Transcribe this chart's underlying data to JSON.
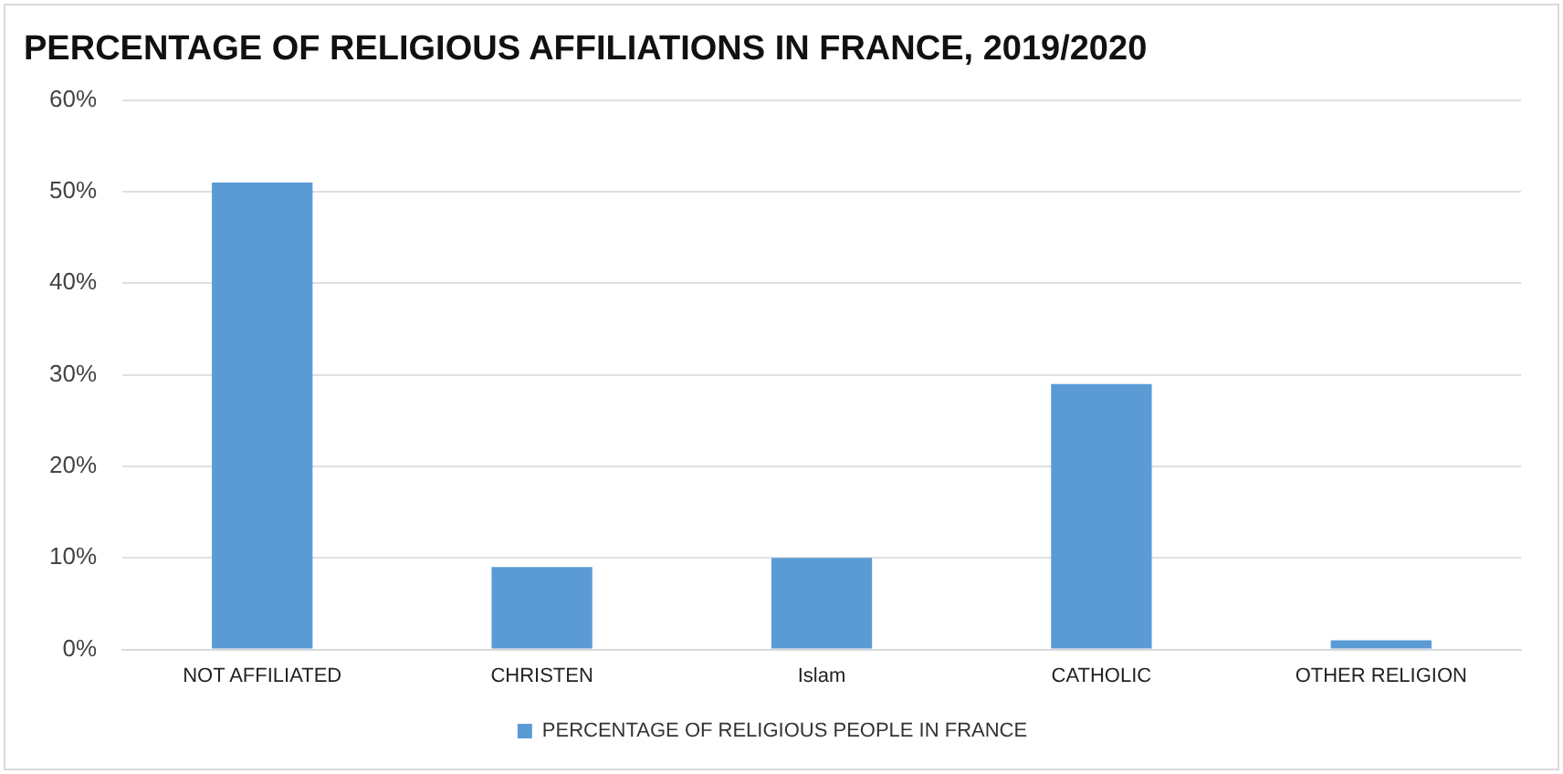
{
  "chart_data": {
    "type": "bar",
    "title": "PERCENTAGE OF RELIGIOUS AFFILIATIONS IN FRANCE, 2019/2020",
    "categories": [
      "NOT AFFILIATED",
      "CHRISTEN",
      "Islam",
      "CATHOLIC",
      "OTHER RELIGION"
    ],
    "series": [
      {
        "name": "PERCENTAGE OF RELIGIOUS PEOPLE IN FRANCE",
        "color": "#5b9bd5",
        "values": [
          51,
          9,
          10,
          29,
          1
        ]
      }
    ],
    "ylim": [
      0,
      60
    ],
    "yticks": [
      {
        "value": 0,
        "label": "0%"
      },
      {
        "value": 10,
        "label": "10%"
      },
      {
        "value": 20,
        "label": "20%"
      },
      {
        "value": 30,
        "label": "30%"
      },
      {
        "value": 40,
        "label": "40%"
      },
      {
        "value": 50,
        "label": "50%"
      },
      {
        "value": 60,
        "label": "60%"
      }
    ],
    "grid": "y",
    "legend": "bottom"
  }
}
